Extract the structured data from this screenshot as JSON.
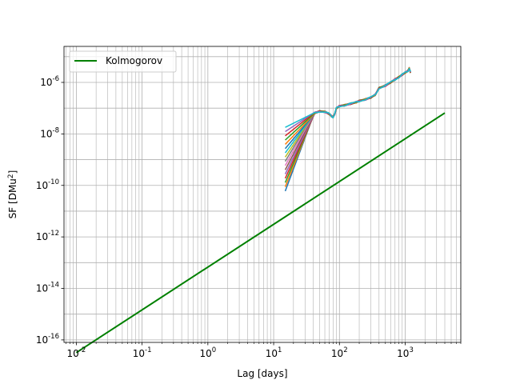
{
  "chart_data": {
    "type": "line",
    "title": "",
    "xlabel": "Lag [days]",
    "ylabel": "SF [DMu",
    "ylabel_sup": "2",
    "ylabel_end": "]",
    "xscale": "log",
    "yscale": "log",
    "xlim": [
      0.0065,
      7000
    ],
    "ylim": [
      8e-17,
      2.5e-05
    ],
    "grid": true,
    "grid_minor": true,
    "legend": {
      "position": "top-left",
      "entries": [
        "Kolmogorov"
      ]
    },
    "x_ticks": [
      {
        "base": "10",
        "exp": "-2",
        "value": 0.01
      },
      {
        "base": "10",
        "exp": "-1",
        "value": 0.1
      },
      {
        "base": "10",
        "exp": "0",
        "value": 1
      },
      {
        "base": "10",
        "exp": "1",
        "value": 10
      },
      {
        "base": "10",
        "exp": "2",
        "value": 100
      },
      {
        "base": "10",
        "exp": "3",
        "value": 1000
      }
    ],
    "y_ticks": [
      {
        "base": "10",
        "exp": "-16",
        "value": 1e-16
      },
      {
        "base": "10",
        "exp": "-14",
        "value": 1e-14
      },
      {
        "base": "10",
        "exp": "-12",
        "value": 1e-12
      },
      {
        "base": "10",
        "exp": "-10",
        "value": 1e-10
      },
      {
        "base": "10",
        "exp": "-8",
        "value": 1e-08
      },
      {
        "base": "10",
        "exp": "-6",
        "value": 1e-06
      }
    ],
    "series": [
      {
        "name": "Kolmogorov",
        "color": "#008000",
        "x": [
          0.01,
          4000
        ],
        "y": [
          3.2e-17,
          6.5e-08
        ]
      }
    ],
    "data_curves": {
      "count": 16,
      "colors": [
        "#1f77b4",
        "#ff7f0e",
        "#2ca02c",
        "#d62728",
        "#9467bd",
        "#8c564b",
        "#e377c2",
        "#7f7f7f",
        "#bcbd22",
        "#17becf",
        "#1f77b4",
        "#ff7f0e",
        "#2ca02c",
        "#d62728",
        "#9467bd",
        "#17becf"
      ],
      "start_x": 15,
      "start_y_range": [
        6e-11,
        1.8e-08
      ],
      "converge_x": 42,
      "shared_path": {
        "x": [
          42,
          50,
          60,
          70,
          75,
          80,
          85,
          90,
          100,
          120,
          150,
          180,
          200,
          250,
          300,
          350,
          400,
          500,
          600,
          700,
          800,
          900,
          1000,
          1100,
          1150,
          1200
        ],
        "y": [
          6.5e-08,
          7.5e-08,
          7.2e-08,
          6e-08,
          5e-08,
          4.5e-08,
          6e-08,
          1e-07,
          1.2e-07,
          1.3e-07,
          1.5e-07,
          1.7e-07,
          1.9e-07,
          2.2e-07,
          2.6e-07,
          3.3e-07,
          6e-07,
          7.5e-07,
          1e-06,
          1.3e-06,
          1.6e-06,
          2e-06,
          2.4e-06,
          2.8e-06,
          3.5e-06,
          2.5e-06
        ]
      }
    }
  }
}
